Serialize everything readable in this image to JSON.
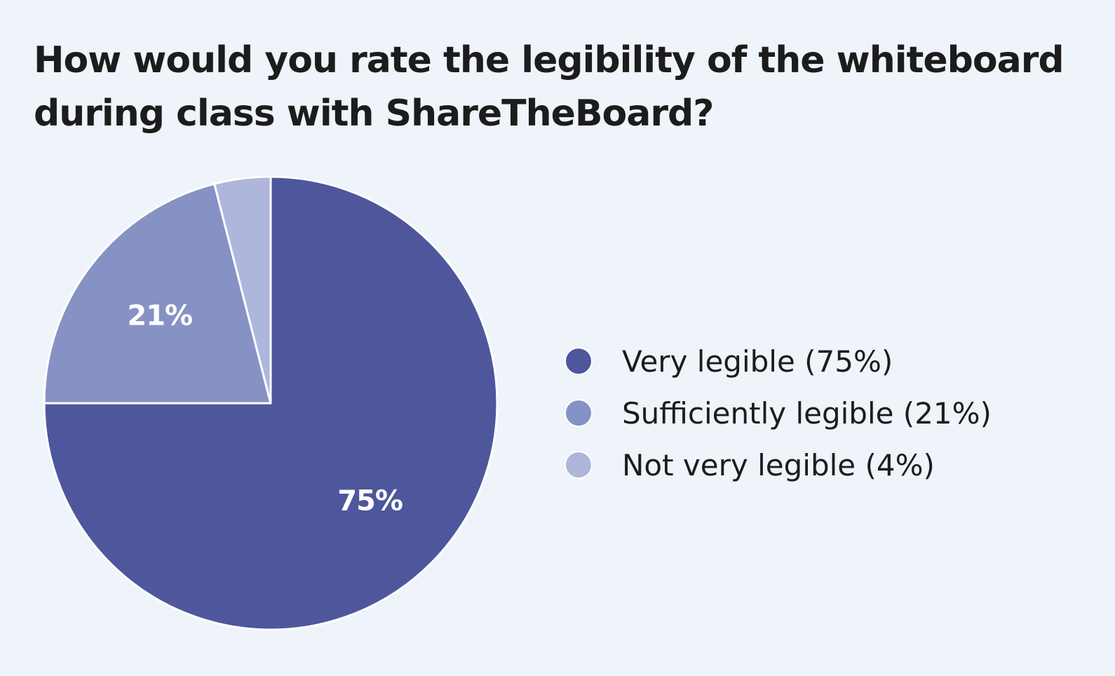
{
  "chart_data": {
    "type": "pie",
    "title": "How would you rate the legibility of the whiteboard during class with ShareTheBoard?",
    "categories": [
      "Very legible",
      "Sufficiently legible",
      "Not very legible"
    ],
    "values": [
      75,
      21,
      4
    ],
    "slice_labels": [
      "75%",
      "21%",
      ""
    ],
    "legend_entries": [
      "Very legible (75%)",
      "Sufficiently legible (21%)",
      "Not very legible (4%)"
    ],
    "colors": [
      "#4e579c",
      "#8692c4",
      "#aeb6db"
    ],
    "legend_position": "right"
  }
}
